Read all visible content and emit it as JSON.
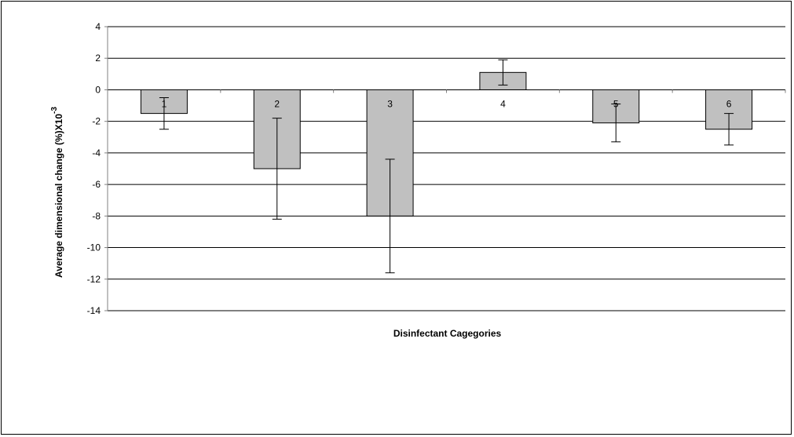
{
  "chart_data": {
    "type": "bar",
    "title": "",
    "xlabel": "Disinfectant Cagegories",
    "ylabel": "Average dimensional change (%)X10",
    "ylabel_superscript": "-3",
    "categories": [
      "1",
      "2",
      "3",
      "4",
      "5",
      "6"
    ],
    "series": [
      {
        "values": [
          -1.5,
          -5.0,
          -8.0,
          1.1,
          -2.1,
          -2.5
        ],
        "error": [
          1.0,
          3.2,
          3.6,
          0.8,
          1.2,
          1.0
        ]
      }
    ],
    "ylim": [
      -14,
      4
    ],
    "yticks": [
      4,
      2,
      0,
      -2,
      -4,
      -6,
      -8,
      -10,
      -12,
      -14
    ],
    "grid": true,
    "legend": "none",
    "colors": {
      "bar_fill": "#c0c0c0",
      "bar_stroke": "#000000",
      "grid": "#000000",
      "axis": "#808080"
    }
  }
}
